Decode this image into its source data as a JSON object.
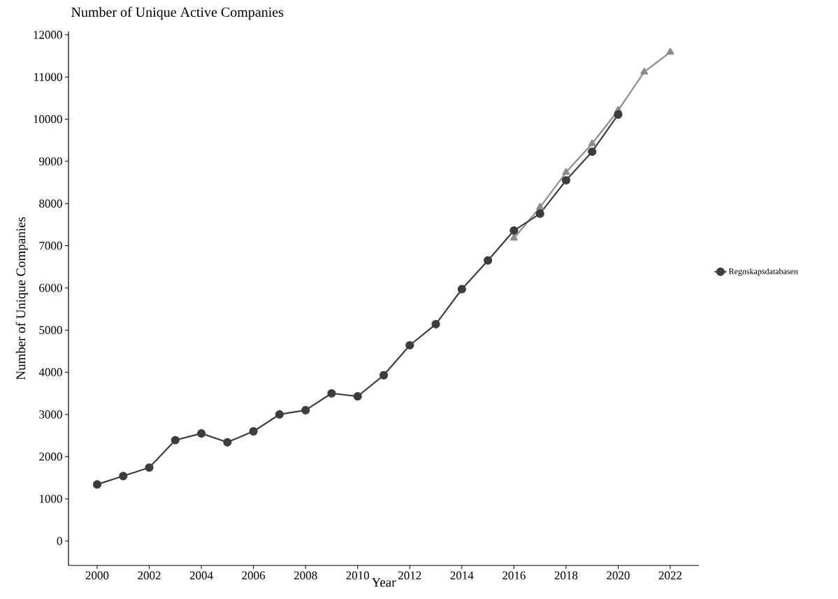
{
  "chart_data": {
    "type": "line",
    "title": "Number of Unique Active Companies",
    "xlabel": "Year",
    "ylabel": "Number of Unique Companies",
    "xlim": [
      1998.9,
      2023.1
    ],
    "xticks": [
      2000,
      2002,
      2004,
      2006,
      2008,
      2010,
      2012,
      2014,
      2016,
      2018,
      2020,
      2022
    ],
    "ylim": [
      -580,
      12080
    ],
    "yticks": [
      0,
      1000,
      2000,
      3000,
      4000,
      5000,
      6000,
      7000,
      8000,
      9000,
      10000,
      11000,
      12000
    ],
    "grid": false,
    "legend": "right",
    "line_style": "solid",
    "series": [
      {
        "color": "#8c8c8c",
        "marker": "triangle",
        "x": [
          2016,
          2017,
          2018,
          2019,
          2020,
          2021,
          2022
        ],
        "values": [
          7180,
          7910,
          8740,
          9420,
          10210,
          11120,
          11590
        ]
      },
      {
        "name": "Regnskapsdatabasen",
        "color": "#3d3d3d",
        "marker": "circle",
        "x": [
          2000,
          2001,
          2002,
          2003,
          2004,
          2005,
          2006,
          2007,
          2008,
          2009,
          2010,
          2011,
          2012,
          2013,
          2014,
          2015,
          2016,
          2017,
          2018,
          2019,
          2020
        ],
        "values": [
          1340,
          1540,
          1740,
          2390,
          2550,
          2340,
          2600,
          3000,
          3100,
          3500,
          3430,
          3930,
          4640,
          5140,
          5970,
          6650,
          7360,
          7760,
          8550,
          9230,
          10110
        ]
      }
    ]
  }
}
